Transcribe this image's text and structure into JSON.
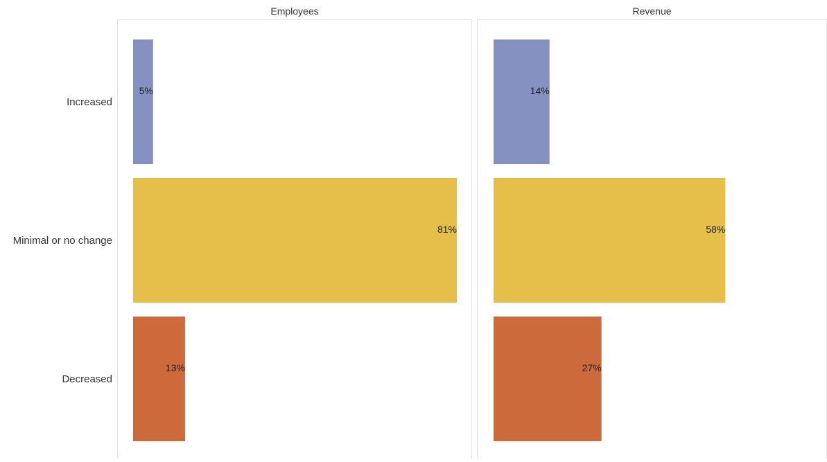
{
  "chart_data": {
    "type": "bar",
    "orientation": "horizontal",
    "categories": [
      "Increased",
      "Minimal or no change",
      "Decreased"
    ],
    "category_colors": {
      "Increased": "#8591C1",
      "Minimal or no change": "#E6BE4A",
      "Decreased": "#CC6A3B"
    },
    "panels": [
      {
        "title": "Employees",
        "values": [
          5,
          81,
          13
        ],
        "labels": [
          "5%",
          "81%",
          "13%"
        ]
      },
      {
        "title": "Revenue",
        "values": [
          14,
          58,
          27
        ],
        "labels": [
          "14%",
          "58%",
          "27%"
        ]
      }
    ],
    "xlim": [
      0,
      85
    ],
    "grid": false,
    "legend": "none"
  }
}
